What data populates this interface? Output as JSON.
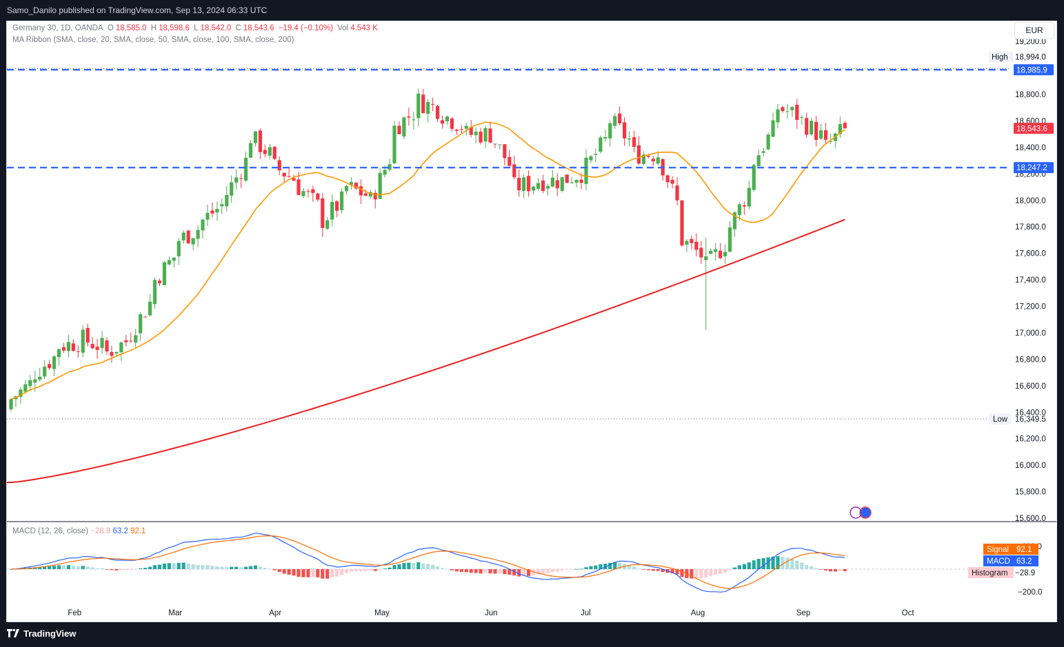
{
  "header": {
    "published": "Samo_Danilo published on TradingView.com, Sep 13, 2024 06:33 UTC"
  },
  "footer": {
    "brand": "TradingView"
  },
  "symbol": {
    "name": "Germany 30, 1D, OANDA",
    "o_label": "O",
    "o": "18,585.0",
    "h_label": "H",
    "h": "18,598.6",
    "l_label": "L",
    "l": "18,542.0",
    "c_label": "C",
    "c": "18,543.6",
    "change": "−19.4 (−0.10%)",
    "vol_label": "Vol",
    "vol": "4.543 K"
  },
  "ma_ribbon": "MA Ribbon (SMA, close, 20, SMA, close, 50, SMA, close, 100, SMA, close, 200)",
  "currency": "EUR",
  "price_axis": {
    "ticks": [
      "19,200.0",
      "18,800.0",
      "18,600.0",
      "18,400.0",
      "18,200.0",
      "18,000.0",
      "17,800.0",
      "17,600.0",
      "17,400.0",
      "17,200.0",
      "17,000.0",
      "16,800.0",
      "16,600.0",
      "16,400.0",
      "16,200.0",
      "16,000.0",
      "15,800.0",
      "15,600.0"
    ],
    "high_label": "High",
    "high_value": "18,994.0",
    "low_label": "Low",
    "low_value": "16,349.5",
    "level1": "18,985.9",
    "last": "18,543.6",
    "level2": "18,247.2"
  },
  "macd": {
    "legend_name": "MACD (12, 26, close)",
    "histogram_val": "−28.9",
    "macd_val": "63.2",
    "signal_val": "92.1",
    "signal_label": "Signal",
    "macd_label": "MACD",
    "hist_label": "Histogram",
    "ticks": [
      "200.0",
      "−200.0"
    ]
  },
  "time_axis": [
    "Feb",
    "Mar",
    "Apr",
    "May",
    "Jun",
    "Jul",
    "Aug",
    "Sep",
    "Oct"
  ],
  "colors": {
    "up": "#26a69a",
    "down": "#ef5350",
    "candle_up": "#4caf50",
    "candle_down": "#f23645",
    "ma20": "#ff9800",
    "ma200": "#e91e1e",
    "level": "#2962ff",
    "macd": "#2962ff",
    "signal": "#ff6d00"
  },
  "chart_data": {
    "type": "candlestick",
    "title": "Germany 30, 1D, OANDA",
    "ylim": [
      15600,
      19200
    ],
    "x_start": "2024-01-15",
    "ohlc": [],
    "closes_anchor": [
      [
        "2024-01-15",
        16500
      ],
      [
        "2024-01-22",
        16700
      ],
      [
        "2024-01-29",
        16900
      ],
      [
        "2024-02-05",
        16950
      ],
      [
        "2024-02-12",
        16850
      ],
      [
        "2024-02-19",
        17000
      ],
      [
        "2024-02-26",
        17400
      ],
      [
        "2024-03-04",
        17700
      ],
      [
        "2024-03-11",
        17850
      ],
      [
        "2024-03-18",
        18050
      ],
      [
        "2024-03-25",
        18480
      ],
      [
        "2024-04-01",
        18250
      ],
      [
        "2024-04-08",
        18100
      ],
      [
        "2024-04-15",
        17850
      ],
      [
        "2024-04-22",
        18100
      ],
      [
        "2024-04-29",
        18000
      ],
      [
        "2024-05-06",
        18550
      ],
      [
        "2024-05-13",
        18750
      ],
      [
        "2024-05-20",
        18650
      ],
      [
        "2024-05-27",
        18500
      ],
      [
        "2024-06-03",
        18500
      ],
      [
        "2024-06-10",
        18100
      ],
      [
        "2024-06-17",
        18150
      ],
      [
        "2024-06-24",
        18150
      ],
      [
        "2024-07-01",
        18250
      ],
      [
        "2024-07-08",
        18600
      ],
      [
        "2024-07-15",
        18350
      ],
      [
        "2024-07-22",
        18350
      ],
      [
        "2024-07-29",
        17700
      ],
      [
        "2024-08-05",
        17500
      ],
      [
        "2024-08-12",
        17800
      ],
      [
        "2024-08-19",
        18300
      ],
      [
        "2024-08-26",
        18700
      ],
      [
        "2024-09-02",
        18600
      ],
      [
        "2024-09-09",
        18400
      ],
      [
        "2024-09-13",
        18543.6
      ]
    ],
    "levels": [
      18985.9,
      18247.2
    ],
    "high": 18994.0,
    "low": 16349.5
  }
}
